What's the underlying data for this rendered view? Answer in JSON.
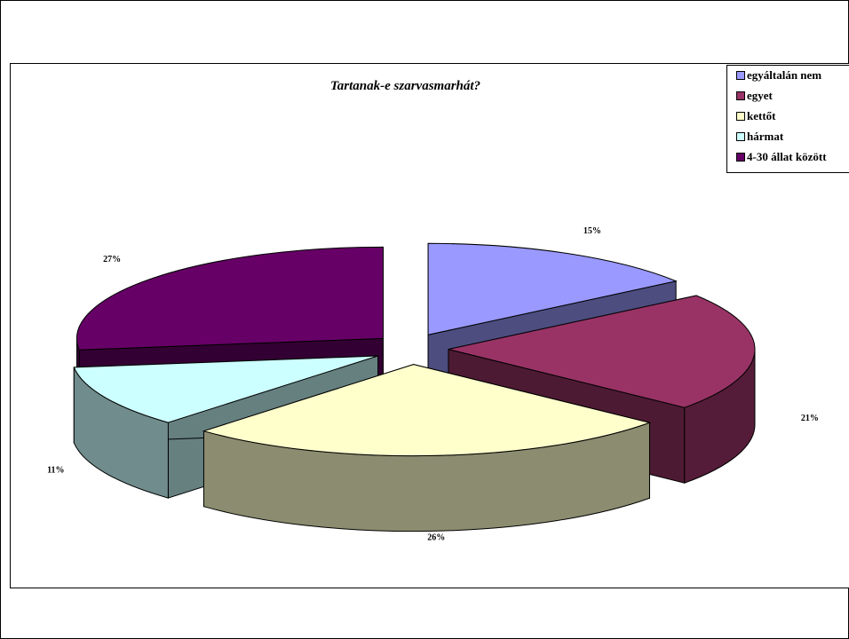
{
  "chart_data": {
    "type": "pie",
    "title": "Tartanak-e szarvasmarhát?",
    "categories": [
      "egyáltalán nem",
      "egyet",
      "kettőt",
      "hármat",
      "4-30 állat között"
    ],
    "values": [
      15,
      21,
      26,
      11,
      27
    ],
    "labels": [
      "15%",
      "21%",
      "26%",
      "11%",
      "27%"
    ],
    "colors": [
      "#9999ff",
      "#993366",
      "#ffffcc",
      "#ccffff",
      "#660066"
    ],
    "style": "3d-exploded",
    "legend_position": "top-right"
  }
}
